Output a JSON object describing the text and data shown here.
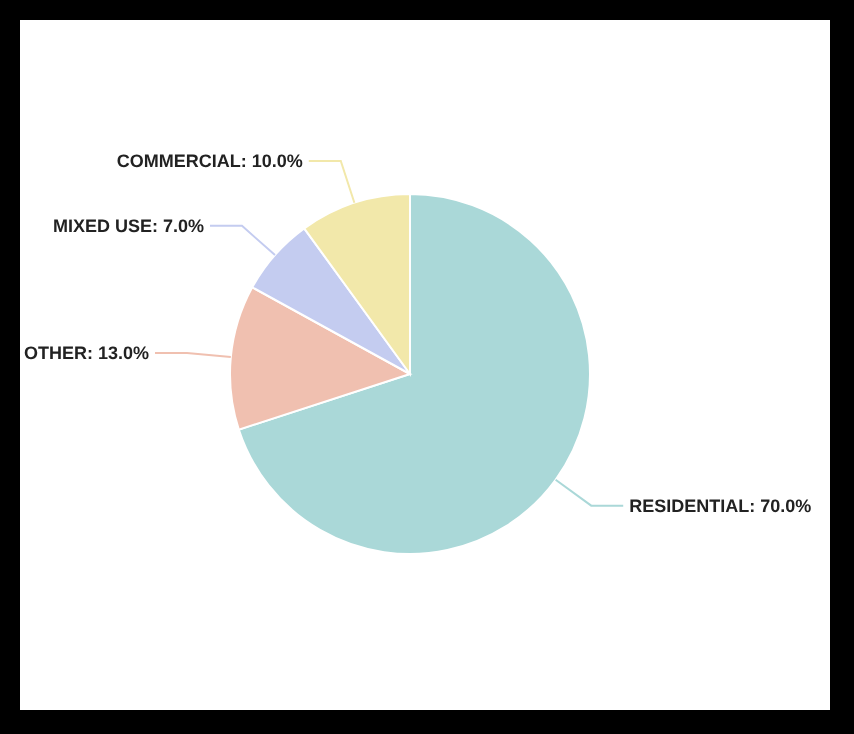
{
  "chart_data": {
    "type": "pie",
    "categories": [
      "RESIDENTIAL",
      "OTHER",
      "MIXED USE",
      "COMMERCIAL"
    ],
    "values": [
      70,
      13,
      7,
      10
    ],
    "value_labels": [
      "70.0%",
      "13.0%",
      "7.0%",
      "10.0%"
    ],
    "colors": [
      "#aad8d8",
      "#f0c0b0",
      "#c4ccf0",
      "#f2e8aa"
    ],
    "legend": false
  }
}
